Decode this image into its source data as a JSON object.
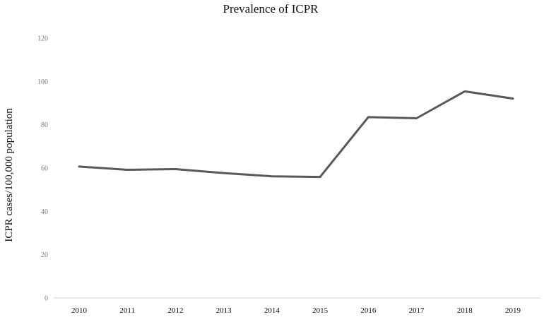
{
  "chart_data": {
    "type": "line",
    "title": "Prevalence of ICPR",
    "xlabel": "",
    "ylabel": "ICPR cases/100,000 population",
    "x": [
      "2010",
      "2011",
      "2012",
      "2013",
      "2014",
      "2015",
      "2016",
      "2017",
      "2018",
      "2019"
    ],
    "series": [
      {
        "values": [
          60.7,
          59.2,
          59.5,
          57.7,
          56.2,
          55.9,
          83.5,
          83.0,
          95.4,
          92.1
        ]
      }
    ],
    "ylim": [
      0,
      120
    ],
    "y_ticks": [
      "0",
      "20",
      "40",
      "60",
      "80",
      "100",
      "120"
    ],
    "grid": false,
    "legend": "none",
    "line_color": "#595959",
    "axis_color": "#d0d0d0"
  }
}
